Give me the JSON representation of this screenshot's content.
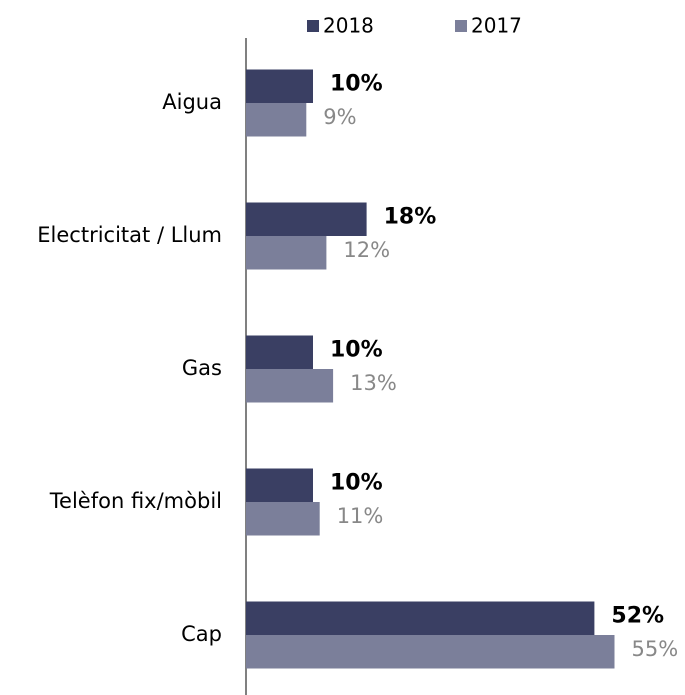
{
  "chart_data": {
    "type": "hbar",
    "categories": [
      "Aigua",
      "Electricitat / Llum",
      "Gas",
      "Telèfon fix/mòbil",
      "Cap"
    ],
    "series": [
      {
        "name": "2018",
        "color": "#3a3f63",
        "values": [
          10,
          18,
          10,
          10,
          52
        ],
        "value_labels": [
          "10%",
          "18%",
          "10%",
          "10%",
          "52%"
        ]
      },
      {
        "name": "2017",
        "color": "#7b7f9a",
        "values": [
          9,
          12,
          13,
          11,
          55
        ],
        "value_labels": [
          "9%",
          "12%",
          "13%",
          "11%",
          "55%"
        ]
      }
    ],
    "legend": "top"
  }
}
